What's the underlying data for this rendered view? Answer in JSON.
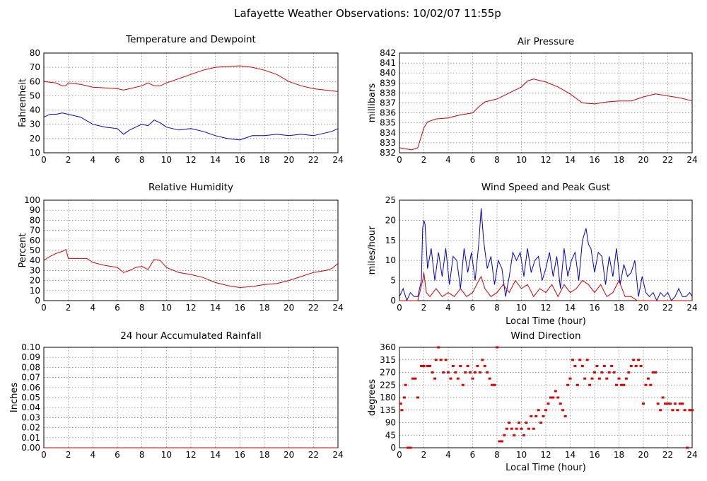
{
  "page": {
    "title": "Lafayette Weather Observations: 10/02/07 11:55p"
  },
  "chart_data": [
    {
      "id": "temp",
      "type": "line",
      "title": "Temperature and Dewpoint",
      "xlabel": "",
      "ylabel": "Fahrenheit",
      "xlim": [
        0,
        24
      ],
      "ylim": [
        10,
        80
      ],
      "xticks": [
        "0",
        "2",
        "4",
        "6",
        "8",
        "10",
        "12",
        "14",
        "16",
        "18",
        "20",
        "22",
        "24"
      ],
      "yticks": [
        "10",
        "20",
        "30",
        "40",
        "50",
        "60",
        "70",
        "80"
      ],
      "grid": true,
      "series": [
        {
          "color": "#cc0000",
          "x": [
            0,
            1,
            1.5,
            1.8,
            2,
            3,
            4,
            5,
            6,
            6.5,
            7,
            8,
            8.5,
            9,
            9.5,
            10,
            11,
            12,
            13,
            14,
            15,
            16,
            17,
            18,
            19,
            20,
            21,
            22,
            23,
            24
          ],
          "y": [
            60,
            59,
            57,
            57,
            59,
            58,
            56,
            55.5,
            55,
            54,
            55,
            57,
            59,
            57,
            57,
            59,
            62,
            65,
            68,
            70,
            70.5,
            71,
            70,
            68,
            65,
            60,
            57,
            55,
            54,
            53
          ]
        },
        {
          "color": "#0000cc",
          "x": [
            0,
            0.5,
            1,
            1.5,
            2,
            2.5,
            3,
            4,
            5,
            6,
            6.5,
            7,
            7.5,
            8,
            8.5,
            9,
            9.5,
            10,
            11,
            12,
            13,
            14,
            15,
            16,
            17,
            18,
            19,
            20,
            21,
            22,
            23,
            23.5,
            24
          ],
          "y": [
            35,
            37,
            37,
            38,
            37,
            36,
            35,
            30,
            28,
            27,
            23,
            26,
            28,
            30,
            29,
            33,
            31,
            28,
            26,
            27,
            25,
            22,
            20,
            19,
            22,
            22,
            23,
            22,
            23,
            22,
            24,
            25,
            27
          ]
        }
      ]
    },
    {
      "id": "pressure",
      "type": "line",
      "title": "Air Pressure",
      "xlabel": "",
      "ylabel": "millibars",
      "xlim": [
        0,
        24
      ],
      "ylim": [
        832,
        842
      ],
      "xticks": [
        "0",
        "2",
        "4",
        "6",
        "8",
        "10",
        "12",
        "14",
        "16",
        "18",
        "20",
        "22",
        "24"
      ],
      "yticks": [
        "832",
        "833",
        "834",
        "835",
        "836",
        "837",
        "838",
        "839",
        "840",
        "841",
        "842"
      ],
      "grid": true,
      "series": [
        {
          "color": "#cc0000",
          "x": [
            0,
            0.5,
            1,
            1.5,
            2,
            2.3,
            3,
            4,
            5,
            6,
            6.5,
            7,
            8,
            9,
            10,
            10.5,
            11,
            12,
            13,
            14,
            15,
            16,
            17,
            18,
            19,
            20,
            21,
            22,
            23,
            24
          ],
          "y": [
            832.5,
            832.4,
            832.3,
            832.5,
            834.5,
            835.1,
            835.4,
            835.5,
            835.8,
            836.0,
            836.6,
            837.1,
            837.4,
            838.0,
            838.6,
            839.2,
            839.4,
            839.1,
            838.6,
            837.9,
            837.0,
            836.9,
            837.1,
            837.2,
            837.2,
            837.6,
            837.9,
            837.7,
            837.5,
            837.2
          ]
        }
      ]
    },
    {
      "id": "humidity",
      "type": "line",
      "title": "Relative Humidity",
      "xlabel": "",
      "ylabel": "Percent",
      "xlim": [
        0,
        24
      ],
      "ylim": [
        0,
        100
      ],
      "xticks": [
        "0",
        "2",
        "4",
        "6",
        "8",
        "10",
        "12",
        "14",
        "16",
        "18",
        "20",
        "22",
        "24"
      ],
      "yticks": [
        "0",
        "10",
        "20",
        "30",
        "40",
        "50",
        "60",
        "70",
        "80",
        "90",
        "100"
      ],
      "grid": true,
      "series": [
        {
          "color": "#cc0000",
          "x": [
            0,
            0.5,
            1,
            1.5,
            1.8,
            2,
            3,
            3.5,
            4,
            5,
            6,
            6.5,
            7,
            7.5,
            8,
            8.5,
            9,
            9.5,
            10,
            11,
            12,
            13,
            14,
            15,
            16,
            17,
            18,
            19,
            20,
            21,
            22,
            23,
            23.5,
            24
          ],
          "y": [
            40,
            44,
            47,
            49,
            51,
            42,
            42,
            42,
            38,
            35,
            33,
            28,
            30,
            33,
            34,
            31,
            41,
            40,
            33,
            28,
            26,
            23,
            18,
            15,
            13,
            14,
            16,
            17,
            20,
            24,
            28,
            30,
            32,
            37
          ]
        }
      ]
    },
    {
      "id": "rain",
      "type": "line",
      "title": "24 hour Accumulated Rainfall",
      "xlabel": "",
      "ylabel": "Inches",
      "xlim": [
        0,
        24
      ],
      "ylim": [
        0,
        0.1
      ],
      "xticks": [
        "0",
        "2",
        "4",
        "6",
        "8",
        "10",
        "12",
        "14",
        "16",
        "18",
        "20",
        "22",
        "24"
      ],
      "yticks": [
        "0.00",
        "0.01",
        "0.02",
        "0.03",
        "0.04",
        "0.05",
        "0.06",
        "0.07",
        "0.08",
        "0.09",
        "0.10"
      ],
      "grid": true,
      "series": [
        {
          "color": "#cc0000",
          "x": [
            0,
            24
          ],
          "y": [
            0,
            0
          ]
        }
      ]
    },
    {
      "id": "wind",
      "type": "line",
      "title": "Wind Speed and Peak Gust",
      "xlabel": "Local Time (hour)",
      "ylabel": "miles/hour",
      "xlim": [
        0,
        24
      ],
      "ylim": [
        0,
        25
      ],
      "xticks": [
        "0",
        "2",
        "4",
        "6",
        "8",
        "10",
        "12",
        "14",
        "16",
        "18",
        "20",
        "22",
        "24"
      ],
      "yticks": [
        "0",
        "5",
        "10",
        "15",
        "20",
        "25"
      ],
      "grid": true,
      "series": [
        {
          "color": "#0000cc",
          "x": [
            0,
            0.3,
            0.6,
            0.9,
            1.2,
            1.5,
            1.8,
            1.9,
            2,
            2.1,
            2.3,
            2.6,
            2.9,
            3.2,
            3.5,
            3.8,
            4.1,
            4.4,
            4.7,
            5,
            5.3,
            5.6,
            5.9,
            6.2,
            6.5,
            6.7,
            6.9,
            7.2,
            7.5,
            7.8,
            8.1,
            8.4,
            8.7,
            9,
            9.3,
            9.6,
            9.9,
            10.2,
            10.5,
            10.8,
            11.1,
            11.4,
            11.7,
            12,
            12.3,
            12.6,
            12.9,
            13.2,
            13.5,
            13.8,
            14.1,
            14.4,
            14.7,
            15,
            15.3,
            15.5,
            15.7,
            16,
            16.3,
            16.6,
            16.9,
            17.2,
            17.5,
            17.8,
            18.1,
            18.4,
            18.7,
            19,
            19.3,
            19.6,
            19.9,
            20.2,
            20.5,
            20.8,
            21.1,
            21.4,
            21.7,
            22,
            22.3,
            22.6,
            22.9,
            23.2,
            23.5,
            23.8,
            24
          ],
          "y": [
            1,
            3,
            0,
            2,
            1,
            1,
            5,
            18,
            20,
            19,
            8,
            13,
            5,
            12,
            6,
            13,
            4,
            11,
            10,
            3,
            13,
            7,
            12,
            5,
            14,
            23,
            15,
            8,
            11,
            4,
            10,
            8,
            1,
            6,
            12,
            10,
            12,
            6,
            13,
            7,
            10,
            11,
            5,
            8,
            12,
            6,
            11,
            3,
            13,
            6,
            10,
            12,
            5,
            15,
            18,
            14,
            13,
            7,
            12,
            11,
            4,
            11,
            6,
            13,
            4,
            9,
            6,
            7,
            10,
            1,
            6,
            2,
            1,
            2,
            0,
            2,
            1,
            2,
            0,
            1,
            3,
            1,
            1,
            2,
            1
          ]
        },
        {
          "color": "#cc0000",
          "x": [
            0,
            0.5,
            1,
            1.5,
            1.9,
            2,
            2.2,
            2.5,
            3,
            3.5,
            4,
            4.5,
            5,
            5.5,
            6,
            6.5,
            6.7,
            7,
            7.5,
            8,
            8.5,
            9,
            9.5,
            10,
            10.5,
            11,
            11.5,
            12,
            12.5,
            13,
            13.5,
            14,
            14.5,
            15,
            15.5,
            16,
            16.5,
            17,
            17.5,
            18,
            18.5,
            19,
            19.5,
            20,
            21,
            22,
            23,
            24
          ],
          "y": [
            0,
            0,
            0,
            0,
            5,
            7,
            2,
            1,
            3,
            1,
            2,
            1,
            3,
            1,
            2,
            5,
            6,
            3,
            1,
            2,
            4,
            2,
            5,
            3,
            4,
            1,
            3,
            2,
            4,
            1,
            4,
            2,
            3,
            5,
            4,
            2,
            4,
            1,
            2,
            5,
            1,
            1,
            0,
            0,
            0,
            0,
            0,
            0
          ]
        }
      ]
    },
    {
      "id": "winddir",
      "type": "scatter",
      "title": "Wind Direction",
      "xlabel": "Local Time (hour)",
      "ylabel": "degrees",
      "xlim": [
        0,
        24
      ],
      "ylim": [
        0,
        360
      ],
      "xticks": [
        "0",
        "2",
        "4",
        "6",
        "8",
        "10",
        "12",
        "14",
        "16",
        "18",
        "20",
        "22",
        "24"
      ],
      "yticks": [
        "0",
        "45",
        "90",
        "135",
        "180",
        "225",
        "270",
        "315",
        "360"
      ],
      "grid": true,
      "series": [
        {
          "color": "#dd0000",
          "x": [
            0.1,
            0.2,
            0.4,
            0.5,
            0.7,
            0.9,
            1.1,
            1.3,
            1.5,
            1.8,
            2,
            2.3,
            2.5,
            2.7,
            2.9,
            3,
            3.2,
            3.4,
            3.6,
            3.8,
            4,
            4.2,
            4.4,
            4.6,
            4.8,
            5,
            5.2,
            5.4,
            5.6,
            5.8,
            6,
            6.2,
            6.4,
            6.6,
            6.8,
            7,
            7.2,
            7.4,
            7.6,
            7.8,
            8,
            8.2,
            8.4,
            8.6,
            8.8,
            9,
            9.2,
            9.4,
            9.6,
            9.8,
            10,
            10.2,
            10.4,
            10.6,
            10.8,
            11,
            11.2,
            11.4,
            11.6,
            11.8,
            12,
            12.2,
            12.4,
            12.6,
            12.8,
            13,
            13.2,
            13.4,
            13.6,
            13.8,
            14,
            14.2,
            14.4,
            14.6,
            14.8,
            15,
            15.2,
            15.4,
            15.6,
            15.8,
            16,
            16.2,
            16.4,
            16.6,
            16.8,
            17,
            17.2,
            17.4,
            17.6,
            17.8,
            18,
            18.2,
            18.4,
            18.6,
            18.8,
            19,
            19.2,
            19.4,
            19.6,
            19.8,
            20,
            20.2,
            20.4,
            20.6,
            20.8,
            21,
            21.2,
            21.4,
            21.6,
            21.8,
            22,
            22.2,
            22.4,
            22.6,
            22.8,
            23,
            23.2,
            23.4,
            23.6,
            23.8,
            24
          ],
          "y": [
            158,
            135,
            180,
            225,
            0,
            0,
            248,
            248,
            180,
            293,
            293,
            293,
            293,
            270,
            248,
            315,
            360,
            315,
            270,
            315,
            270,
            248,
            293,
            270,
            248,
            293,
            225,
            270,
            293,
            270,
            248,
            270,
            293,
            270,
            315,
            293,
            270,
            248,
            225,
            225,
            360,
            23,
            23,
            45,
            68,
            90,
            68,
            45,
            68,
            90,
            68,
            45,
            90,
            68,
            113,
            68,
            113,
            135,
            90,
            113,
            135,
            158,
            180,
            180,
            203,
            180,
            158,
            135,
            113,
            225,
            248,
            315,
            293,
            225,
            315,
            293,
            248,
            315,
            225,
            248,
            270,
            293,
            248,
            270,
            293,
            248,
            270,
            293,
            270,
            225,
            248,
            225,
            225,
            248,
            270,
            293,
            315,
            293,
            315,
            293,
            158,
            225,
            248,
            225,
            270,
            270,
            158,
            135,
            180,
            158,
            158,
            158,
            135,
            158,
            135,
            158,
            158,
            135,
            0,
            135,
            135
          ]
        }
      ]
    }
  ]
}
